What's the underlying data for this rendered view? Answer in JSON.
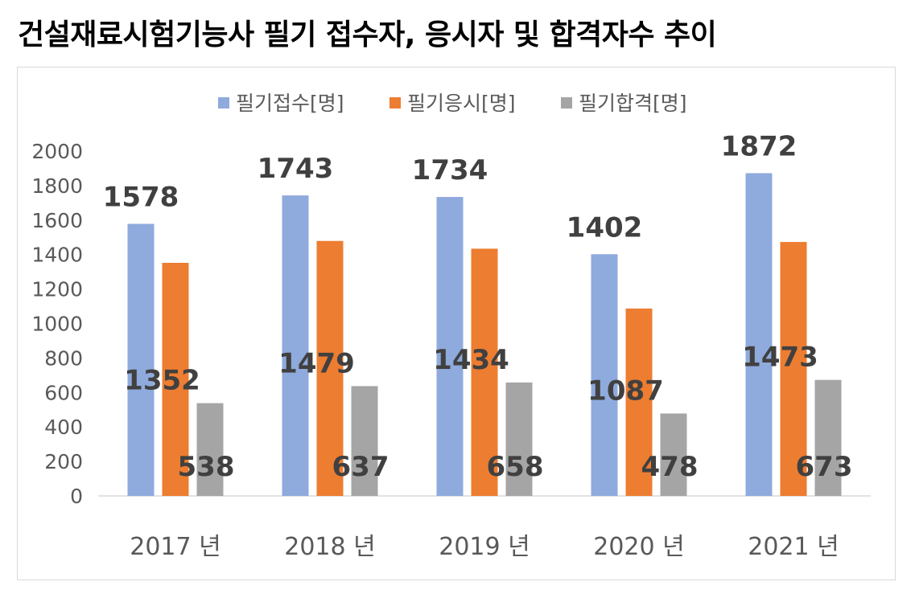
{
  "title": "건설재료시험기능사 필기 접수자, 응시자 및 합격자수 추이",
  "chart_data": {
    "type": "bar",
    "categories": [
      "2017 년",
      "2018 년",
      "2019 년",
      "2020 년",
      "2021 년"
    ],
    "series": [
      {
        "name": "필기접수[명]",
        "values": [
          1578,
          1743,
          1734,
          1402,
          1872
        ],
        "color": "#8faadc"
      },
      {
        "name": "필기응시[명]",
        "values": [
          1352,
          1479,
          1434,
          1087,
          1473
        ],
        "color": "#ed7d31"
      },
      {
        "name": "필기합격[명]",
        "values": [
          538,
          637,
          658,
          478,
          673
        ],
        "color": "#a5a5a5"
      }
    ],
    "yticks": [
      "0",
      "200",
      "400",
      "600",
      "800",
      "1000",
      "1200",
      "1400",
      "1600",
      "1800",
      "2000"
    ],
    "ylim": [
      0,
      2000
    ],
    "legend": "top",
    "grid": false,
    "data_labels": true
  }
}
